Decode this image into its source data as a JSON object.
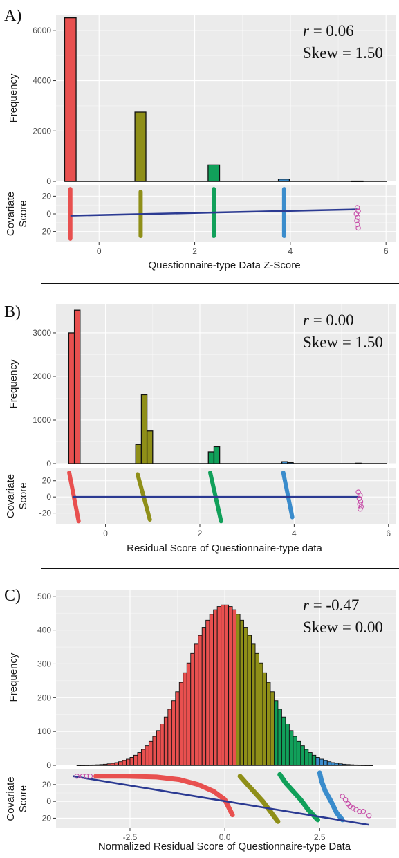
{
  "colors": {
    "red": "#e8504f",
    "olive": "#8f8f18",
    "green": "#11a05a",
    "blue": "#3a8ccc",
    "magenta": "#c74ea8",
    "regression_line": "#2b3a92"
  },
  "chart_data": [
    {
      "tag": "A)",
      "type": "bar",
      "stats": {
        "r_label": "r",
        "r_value": " = 0.06",
        "skew": "Skew = 1.50"
      },
      "hist": {
        "ylabel": "Frequency",
        "ylim": [
          0,
          6600
        ],
        "yticks": [
          0,
          2000,
          4000,
          6000
        ],
        "bins": [
          {
            "x0": -0.72,
            "x1": -0.48,
            "count": 6500,
            "group": "red"
          },
          {
            "x0": 0.75,
            "x1": 0.98,
            "count": 2750,
            "group": "olive"
          },
          {
            "x0": 2.28,
            "x1": 2.52,
            "count": 650,
            "group": "green"
          },
          {
            "x0": 3.75,
            "x1": 3.98,
            "count": 90,
            "group": "blue"
          },
          {
            "x0": 5.28,
            "x1": 5.52,
            "count": 12,
            "group": "magenta"
          }
        ]
      },
      "scatter": {
        "ylabel": [
          "Covariate",
          "Score"
        ],
        "ylim": [
          -32,
          32
        ],
        "yticks": [
          -20,
          0,
          20
        ],
        "groups": [
          {
            "group": "red",
            "x": [
              -0.6,
              -0.6
            ],
            "y": [
              -28,
              28
            ]
          },
          {
            "group": "olive",
            "x": [
              0.87,
              0.87
            ],
            "y": [
              -25,
              25
            ]
          },
          {
            "group": "green",
            "x": [
              2.4,
              2.4
            ],
            "y": [
              -25,
              28
            ]
          },
          {
            "group": "blue",
            "x": [
              3.87,
              3.87
            ],
            "y": [
              -25,
              28
            ]
          }
        ],
        "open_points": {
          "group": "magenta",
          "x": [
            5.4,
            5.42,
            5.38,
            5.41,
            5.39,
            5.4,
            5.42
          ],
          "y": [
            7,
            3,
            0,
            -4,
            -8,
            -12,
            -16
          ]
        },
        "line": {
          "x": [
            -0.6,
            5.4
          ],
          "y": [
            -2,
            5
          ]
        }
      },
      "xlabel": "Questionnaire-type Data Z-Score",
      "xlim": [
        -0.9,
        6.2
      ],
      "xticks": [
        0,
        2,
        4,
        6
      ]
    },
    {
      "tag": "B)",
      "type": "bar",
      "stats": {
        "r_label": "r",
        "r_value": " = 0.00",
        "skew": "Skew = 1.50"
      },
      "hist": {
        "ylabel": "Frequency",
        "ylim": [
          0,
          3650
        ],
        "yticks": [
          0,
          1000,
          2000,
          3000
        ],
        "bins": [
          {
            "x0": -0.78,
            "x1": -0.66,
            "count": 3000,
            "group": "red"
          },
          {
            "x0": -0.66,
            "x1": -0.54,
            "count": 3520,
            "group": "red"
          },
          {
            "x0": 0.64,
            "x1": 0.76,
            "count": 440,
            "group": "olive"
          },
          {
            "x0": 0.76,
            "x1": 0.88,
            "count": 1580,
            "group": "olive"
          },
          {
            "x0": 0.88,
            "x1": 1.0,
            "count": 750,
            "group": "olive"
          },
          {
            "x0": 2.18,
            "x1": 2.3,
            "count": 270,
            "group": "green"
          },
          {
            "x0": 2.3,
            "x1": 2.42,
            "count": 390,
            "group": "green"
          },
          {
            "x0": 3.74,
            "x1": 3.86,
            "count": 45,
            "group": "blue"
          },
          {
            "x0": 3.86,
            "x1": 3.98,
            "count": 25,
            "group": "blue"
          },
          {
            "x0": 5.3,
            "x1": 5.42,
            "count": 10,
            "group": "magenta"
          }
        ]
      },
      "scatter": {
        "ylabel": [
          "Covariate",
          "Score"
        ],
        "ylim": [
          -34,
          36
        ],
        "yticks": [
          -20,
          0,
          20
        ],
        "groups": [
          {
            "group": "red",
            "x": [
              -0.77,
              -0.57
            ],
            "y": [
              30,
              -30
            ]
          },
          {
            "group": "olive",
            "x": [
              0.68,
              0.94
            ],
            "y": [
              28,
              -28
            ]
          },
          {
            "group": "green",
            "x": [
              2.22,
              2.45
            ],
            "y": [
              30,
              -30
            ]
          },
          {
            "group": "blue",
            "x": [
              3.77,
              3.96
            ],
            "y": [
              30,
              -25
            ]
          }
        ],
        "open_points": {
          "group": "magenta",
          "x": [
            5.36,
            5.4,
            5.38,
            5.41,
            5.39,
            5.42,
            5.4
          ],
          "y": [
            6,
            2,
            -2,
            -6,
            -9,
            -12,
            -15
          ]
        },
        "line": {
          "x": [
            -0.7,
            5.4
          ],
          "y": [
            0,
            0
          ]
        }
      },
      "xlabel": "Residual Score of Questionnaire-type data",
      "xlim": [
        -1.05,
        6.15
      ],
      "xticks": [
        0,
        2,
        4,
        6
      ]
    },
    {
      "tag": "C)",
      "type": "bar",
      "stats": {
        "r_label": "r",
        "r_value": " = -0.47",
        "skew": "Skew = 0.00"
      },
      "hist": {
        "ylabel": "Frequency",
        "ylim": [
          0,
          520
        ],
        "yticks": [
          0,
          100,
          200,
          300,
          400,
          500
        ],
        "normal": {
          "peak": 475,
          "mean": 0.0,
          "sd": 1.0,
          "range": [
            -3.9,
            3.9
          ],
          "bin_width": 0.1
        },
        "group_breaks": [
          {
            "upto": 0.3,
            "group": "red"
          },
          {
            "upto": 1.3,
            "group": "olive"
          },
          {
            "upto": 2.4,
            "group": "green"
          },
          {
            "upto": 3.2,
            "group": "blue"
          },
          {
            "upto": 9,
            "group": "magenta"
          }
        ]
      },
      "scatter": {
        "ylabel": [
          "Covariate",
          "Score"
        ],
        "ylim": [
          -32,
          38
        ],
        "yticks": [
          -20,
          0,
          20
        ],
        "curves": [
          {
            "group": "red",
            "x": [
              -3.4,
              -2.6,
              -1.8,
              -1.2,
              -0.7,
              -0.3,
              0.0,
              0.2
            ],
            "y": [
              30,
              30,
              29,
              26,
              20,
              12,
              2,
              -16
            ]
          },
          {
            "group": "olive",
            "x": [
              0.4,
              0.6,
              0.8,
              1.0,
              1.2,
              1.4
            ],
            "y": [
              30,
              20,
              10,
              0,
              -12,
              -24
            ]
          },
          {
            "group": "green",
            "x": [
              1.45,
              1.6,
              1.8,
              2.0,
              2.2,
              2.45
            ],
            "y": [
              32,
              22,
              12,
              2,
              -10,
              -22
            ]
          },
          {
            "group": "blue",
            "x": [
              2.5,
              2.55,
              2.65,
              2.8,
              2.95,
              3.1
            ],
            "y": [
              34,
              24,
              12,
              0,
              -14,
              -22
            ]
          }
        ],
        "open_points": {
          "group": "magenta",
          "x": [
            -3.9,
            -3.75,
            -3.65,
            -3.55,
            3.1,
            3.18,
            3.25,
            3.3,
            3.38,
            3.46,
            3.55,
            3.65,
            3.8
          ],
          "y": [
            30,
            30,
            30,
            30,
            6,
            2,
            -3,
            -6,
            -8,
            -10,
            -12,
            -12,
            -17
          ]
        },
        "line": {
          "x": [
            -4.0,
            3.8
          ],
          "y": [
            30,
            -28
          ]
        }
      },
      "xlabel": "Normalized Residual Score of Questionnaire-type Data",
      "xlim": [
        -4.45,
        4.5
      ],
      "xticks": [
        -2.5,
        0.0,
        2.5
      ],
      "xticklabels": [
        "-2.5",
        "0.0",
        "2.5"
      ]
    }
  ]
}
